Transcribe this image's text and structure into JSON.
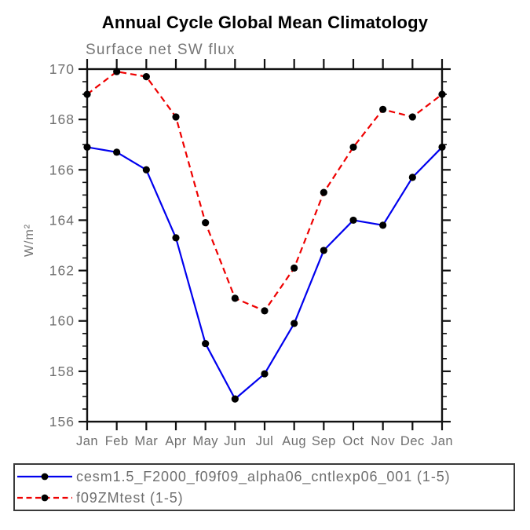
{
  "chart_data": {
    "type": "line",
    "title": "Annual Cycle Global Mean Climatology",
    "subtitle": "Surface net SW flux",
    "ylabel": "W/m²",
    "xlabel": "",
    "categories": [
      "Jan",
      "Feb",
      "Mar",
      "Apr",
      "May",
      "Jun",
      "Jul",
      "Aug",
      "Sep",
      "Oct",
      "Nov",
      "Dec",
      "Jan"
    ],
    "series": [
      {
        "name": "cesm1.5_F2000_f09f09_alpha06_cntlexp06_001 (1-5)",
        "color": "#0000ee",
        "line_style": "solid",
        "values": [
          166.9,
          166.7,
          166.0,
          163.3,
          159.1,
          156.9,
          157.9,
          159.9,
          162.8,
          164.0,
          163.8,
          165.7,
          166.9
        ]
      },
      {
        "name": "f09ZMtest (1-5)",
        "color": "#ee0000",
        "line_style": "dashed",
        "values": [
          169.0,
          169.9,
          169.7,
          168.1,
          163.9,
          160.9,
          160.4,
          162.1,
          165.1,
          166.9,
          168.4,
          168.1,
          169.0
        ]
      }
    ],
    "ylim": [
      156,
      170
    ],
    "y_major_step": 2,
    "y_minor_step": 0.5,
    "grid": false,
    "legend_position": "bottom",
    "marker": "filled-circle",
    "marker_color": "#000000",
    "axis_color": "#111111",
    "text_color": "#6e6e6e"
  }
}
